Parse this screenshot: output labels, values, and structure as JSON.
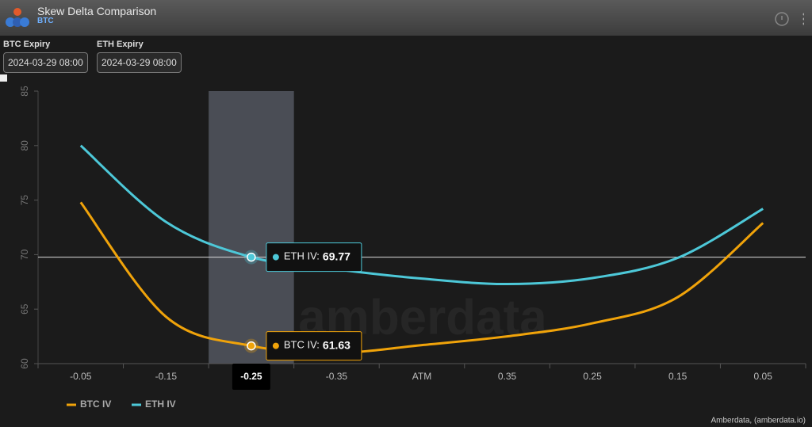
{
  "header": {
    "title": "Skew Delta Comparison",
    "subtitle": "BTC"
  },
  "controls": [
    {
      "label": "BTC Expiry",
      "value": "2024-03-29 08:00"
    },
    {
      "label": "ETH Expiry",
      "value": "2024-03-29 08:00"
    }
  ],
  "chart_data": {
    "type": "line",
    "categories": [
      "-0.05",
      "-0.15",
      "-0.25",
      "-0.35",
      "ATM",
      "0.35",
      "0.25",
      "0.15",
      "0.05"
    ],
    "series": [
      {
        "name": "BTC IV",
        "color": "#f0a30a",
        "values": [
          74.8,
          64.3,
          61.63,
          61.0,
          61.7,
          62.5,
          63.7,
          66.1,
          72.9
        ]
      },
      {
        "name": "ETH IV",
        "color": "#4dc8d8",
        "values": [
          80.0,
          73.0,
          69.77,
          68.65,
          67.8,
          67.3,
          67.85,
          69.7,
          74.2
        ]
      }
    ],
    "ylim": [
      60,
      85
    ],
    "yticks": [
      60,
      65,
      70,
      75,
      80,
      85
    ],
    "legend": "bottom-left",
    "highlight_category": 2,
    "tooltip_labels": [
      "BTC IV:",
      "ETH IV:"
    ],
    "watermark": "amberdata",
    "credit": "Amberdata, (amberdata.io)"
  }
}
